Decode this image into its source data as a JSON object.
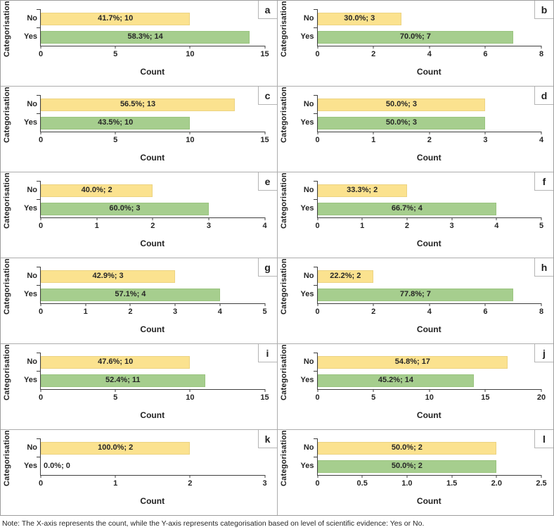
{
  "figure": {
    "ylabel": "Categorisation",
    "xlabel": "Count",
    "note": "Note: The X-axis represents the count, while the Y-axis represents categorisation based on level of scientific evidence: Yes or No."
  },
  "colors": {
    "bars": [
      {
        "category": "No",
        "fill": "#FBE28F",
        "border": "#ecd382"
      },
      {
        "category": "Yes",
        "fill": "#A6CE8E",
        "border": "#9ac47f"
      }
    ],
    "axis": "#404040",
    "panel_border": "#adadad",
    "label_text": "#262626"
  },
  "chart_data": [
    {
      "type": "bar",
      "orientation": "horizontal",
      "panel": "a",
      "ylabel": "Categorisation",
      "xlabel": "Count",
      "categories": [
        "No",
        "Yes"
      ],
      "values": [
        10,
        14
      ],
      "percentages": [
        41.7,
        58.3
      ],
      "bar_labels": [
        "41.7%; 10",
        "58.3%; 14"
      ],
      "xlim": [
        0,
        15
      ],
      "xticks": [
        0,
        5,
        10,
        15
      ],
      "xtick_labels": [
        "0",
        "5",
        "10",
        "15"
      ],
      "grid": false,
      "legend": false
    },
    {
      "type": "bar",
      "orientation": "horizontal",
      "panel": "b",
      "ylabel": "Categorisation",
      "xlabel": "Count",
      "categories": [
        "No",
        "Yes"
      ],
      "values": [
        3,
        7
      ],
      "percentages": [
        30.0,
        70.0
      ],
      "bar_labels": [
        "30.0%; 3",
        "70.0%; 7"
      ],
      "xlim": [
        0,
        8
      ],
      "xticks": [
        0,
        2,
        4,
        6,
        8
      ],
      "xtick_labels": [
        "0",
        "2",
        "4",
        "6",
        "8"
      ],
      "grid": false,
      "legend": false
    },
    {
      "type": "bar",
      "orientation": "horizontal",
      "panel": "c",
      "ylabel": "Categorisation",
      "xlabel": "Count",
      "categories": [
        "No",
        "Yes"
      ],
      "values": [
        13,
        10
      ],
      "percentages": [
        56.5,
        43.5
      ],
      "bar_labels": [
        "56.5%; 13",
        "43.5%; 10"
      ],
      "xlim": [
        0,
        15
      ],
      "xticks": [
        0,
        5,
        10,
        15
      ],
      "xtick_labels": [
        "0",
        "5",
        "10",
        "15"
      ],
      "grid": false,
      "legend": false
    },
    {
      "type": "bar",
      "orientation": "horizontal",
      "panel": "d",
      "ylabel": "Categorisation",
      "xlabel": "Count",
      "categories": [
        "No",
        "Yes"
      ],
      "values": [
        3,
        3
      ],
      "percentages": [
        50.0,
        50.0
      ],
      "bar_labels": [
        "50.0%; 3",
        "50.0%; 3"
      ],
      "xlim": [
        0,
        4
      ],
      "xticks": [
        0,
        1,
        2,
        3,
        4
      ],
      "xtick_labels": [
        "0",
        "1",
        "2",
        "3",
        "4"
      ],
      "grid": false,
      "legend": false
    },
    {
      "type": "bar",
      "orientation": "horizontal",
      "panel": "e",
      "ylabel": "Categorisation",
      "xlabel": "Count",
      "categories": [
        "No",
        "Yes"
      ],
      "values": [
        2,
        3
      ],
      "percentages": [
        40.0,
        60.0
      ],
      "bar_labels": [
        "40.0%; 2",
        "60.0%; 3"
      ],
      "xlim": [
        0,
        4
      ],
      "xticks": [
        0,
        1,
        2,
        3,
        4
      ],
      "xtick_labels": [
        "0",
        "1",
        "2",
        "3",
        "4"
      ],
      "grid": false,
      "legend": false
    },
    {
      "type": "bar",
      "orientation": "horizontal",
      "panel": "f",
      "ylabel": "Categorisation",
      "xlabel": "Count",
      "categories": [
        "No",
        "Yes"
      ],
      "values": [
        2,
        4
      ],
      "percentages": [
        33.3,
        66.7
      ],
      "bar_labels": [
        "33.3%; 2",
        "66.7%; 4"
      ],
      "xlim": [
        0,
        5
      ],
      "xticks": [
        0,
        1,
        2,
        3,
        4,
        5
      ],
      "xtick_labels": [
        "0",
        "1",
        "2",
        "3",
        "4",
        "5"
      ],
      "grid": false,
      "legend": false
    },
    {
      "type": "bar",
      "orientation": "horizontal",
      "panel": "g",
      "ylabel": "Categorisation",
      "xlabel": "Count",
      "categories": [
        "No",
        "Yes"
      ],
      "values": [
        3,
        4
      ],
      "percentages": [
        42.9,
        57.1
      ],
      "bar_labels": [
        "42.9%; 3",
        "57.1%; 4"
      ],
      "xlim": [
        0,
        5
      ],
      "xticks": [
        0,
        1,
        2,
        3,
        4,
        5
      ],
      "xtick_labels": [
        "0",
        "1",
        "2",
        "3",
        "4",
        "5"
      ],
      "grid": false,
      "legend": false
    },
    {
      "type": "bar",
      "orientation": "horizontal",
      "panel": "h",
      "ylabel": "Categorisation",
      "xlabel": "Count",
      "categories": [
        "No",
        "Yes"
      ],
      "values": [
        2,
        7
      ],
      "percentages": [
        22.2,
        77.8
      ],
      "bar_labels": [
        "22.2%; 2",
        "77.8%; 7"
      ],
      "xlim": [
        0,
        8
      ],
      "xticks": [
        0,
        2,
        4,
        6,
        8
      ],
      "xtick_labels": [
        "0",
        "2",
        "4",
        "6",
        "8"
      ],
      "grid": false,
      "legend": false
    },
    {
      "type": "bar",
      "orientation": "horizontal",
      "panel": "i",
      "ylabel": "Categorisation",
      "xlabel": "Count",
      "categories": [
        "No",
        "Yes"
      ],
      "values": [
        10,
        11
      ],
      "percentages": [
        47.6,
        52.4
      ],
      "bar_labels": [
        "47.6%; 10",
        "52.4%; 11"
      ],
      "xlim": [
        0,
        15
      ],
      "xticks": [
        0,
        5,
        10,
        15
      ],
      "xtick_labels": [
        "0",
        "5",
        "10",
        "15"
      ],
      "grid": false,
      "legend": false
    },
    {
      "type": "bar",
      "orientation": "horizontal",
      "panel": "j",
      "ylabel": "Categorisation",
      "xlabel": "Count",
      "categories": [
        "No",
        "Yes"
      ],
      "values": [
        17,
        14
      ],
      "percentages": [
        54.8,
        45.2
      ],
      "bar_labels": [
        "54.8%; 17",
        "45.2%; 14"
      ],
      "xlim": [
        0,
        20
      ],
      "xticks": [
        0,
        5,
        10,
        15,
        20
      ],
      "xtick_labels": [
        "0",
        "5",
        "10",
        "15",
        "20"
      ],
      "grid": false,
      "legend": false
    },
    {
      "type": "bar",
      "orientation": "horizontal",
      "panel": "k",
      "ylabel": "Categorisation",
      "xlabel": "Count",
      "categories": [
        "No",
        "Yes"
      ],
      "values": [
        2,
        0
      ],
      "percentages": [
        100.0,
        0.0
      ],
      "bar_labels": [
        "100.0%; 2",
        "0.0%; 0"
      ],
      "xlim": [
        0,
        3
      ],
      "xticks": [
        0,
        1,
        2,
        3
      ],
      "xtick_labels": [
        "0",
        "1",
        "2",
        "3"
      ],
      "grid": false,
      "legend": false
    },
    {
      "type": "bar",
      "orientation": "horizontal",
      "panel": "l",
      "ylabel": "Categorisation",
      "xlabel": "Count",
      "categories": [
        "No",
        "Yes"
      ],
      "values": [
        2,
        2
      ],
      "percentages": [
        50.0,
        50.0
      ],
      "bar_labels": [
        "50.0%; 2",
        "50.0%; 2"
      ],
      "xlim": [
        0,
        2.5
      ],
      "xticks": [
        0,
        0.5,
        1.0,
        1.5,
        2.0,
        2.5
      ],
      "xtick_labels": [
        "0",
        "0.5",
        "1.0",
        "1.5",
        "2.0",
        "2.5"
      ],
      "grid": false,
      "legend": false
    }
  ]
}
